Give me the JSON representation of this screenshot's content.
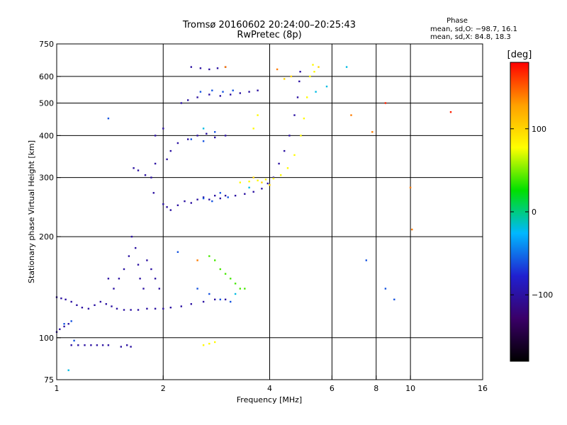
{
  "chart_data": {
    "type": "scatter",
    "title": "Tromsø 20160602 20:24:00–20:25:43",
    "subtitle": "RwPretec (8p)",
    "xlabel": "Frequency [MHz]",
    "ylabel": "Stationary phase Virtual Height [km]",
    "x_scale": "log",
    "y_scale": "log",
    "xlim": [
      1,
      16
    ],
    "ylim": [
      75,
      750
    ],
    "x_ticks": [
      1,
      2,
      4,
      6,
      8,
      10,
      16
    ],
    "y_ticks": [
      75,
      100,
      200,
      300,
      400,
      500,
      600,
      750
    ],
    "grid": true,
    "phase_info": {
      "heading": "Phase",
      "line_o": "mean, sd,O: −98.7, 16.1",
      "line_x": "mean, sd,X:  84.8, 18.3"
    },
    "colorbar": {
      "label": "[deg]",
      "range": [
        -180,
        180
      ],
      "ticks": [
        100,
        0,
        -100
      ],
      "colors": [
        "#000000",
        "#3a0068",
        "#2020d0",
        "#00b8ff",
        "#00e000",
        "#ffff00",
        "#ffa000",
        "#ff0000"
      ]
    },
    "series": [
      {
        "phase": -100,
        "points": [
          [
            1.0,
            132
          ],
          [
            1.03,
            131
          ],
          [
            1.06,
            130
          ],
          [
            1.1,
            128
          ],
          [
            1.14,
            125
          ],
          [
            1.18,
            123
          ],
          [
            1.23,
            122
          ],
          [
            1.28,
            125
          ],
          [
            1.33,
            128
          ],
          [
            1.38,
            126
          ],
          [
            1.43,
            124
          ],
          [
            1.48,
            122
          ],
          [
            1.55,
            121
          ],
          [
            1.62,
            121
          ],
          [
            1.7,
            121
          ],
          [
            1.8,
            122
          ],
          [
            1.9,
            122
          ],
          [
            2.0,
            122
          ],
          [
            2.1,
            123
          ],
          [
            2.25,
            124
          ],
          [
            2.4,
            126
          ],
          [
            2.6,
            128
          ],
          [
            2.8,
            130
          ],
          [
            3.0,
            130
          ],
          [
            1.0,
            104
          ],
          [
            1.02,
            106
          ],
          [
            1.05,
            108
          ],
          [
            1.08,
            110
          ],
          [
            1.1,
            95
          ],
          [
            1.15,
            95
          ],
          [
            1.2,
            95
          ],
          [
            1.25,
            95
          ],
          [
            1.3,
            95
          ],
          [
            1.35,
            95
          ],
          [
            1.4,
            95
          ],
          [
            1.52,
            94
          ],
          [
            1.58,
            95
          ],
          [
            1.62,
            94
          ],
          [
            1.5,
            150
          ],
          [
            1.55,
            160
          ],
          [
            1.6,
            175
          ],
          [
            1.63,
            200
          ],
          [
            1.67,
            185
          ],
          [
            1.7,
            165
          ],
          [
            1.72,
            150
          ],
          [
            1.76,
            140
          ],
          [
            1.8,
            170
          ],
          [
            1.85,
            160
          ],
          [
            1.9,
            150
          ],
          [
            1.95,
            140
          ],
          [
            1.45,
            140
          ],
          [
            1.4,
            150
          ],
          [
            1.65,
            320
          ],
          [
            1.7,
            315
          ],
          [
            1.78,
            305
          ],
          [
            1.85,
            300
          ],
          [
            1.88,
            270
          ],
          [
            1.9,
            330
          ],
          [
            2.0,
            250
          ],
          [
            2.05,
            245
          ],
          [
            2.1,
            240
          ],
          [
            2.2,
            248
          ],
          [
            2.3,
            255
          ],
          [
            2.4,
            252
          ],
          [
            2.5,
            258
          ],
          [
            2.6,
            262
          ],
          [
            2.7,
            258
          ],
          [
            2.8,
            265
          ],
          [
            2.9,
            260
          ],
          [
            3.0,
            265
          ],
          [
            3.2,
            265
          ],
          [
            3.4,
            268
          ],
          [
            3.6,
            272
          ],
          [
            3.8,
            278
          ],
          [
            3.95,
            288
          ],
          [
            4.1,
            300
          ],
          [
            4.25,
            330
          ],
          [
            4.4,
            360
          ],
          [
            4.55,
            400
          ],
          [
            4.7,
            460
          ],
          [
            4.8,
            520
          ],
          [
            4.85,
            580
          ],
          [
            4.88,
            620
          ],
          [
            2.25,
            500
          ],
          [
            2.35,
            510
          ],
          [
            2.5,
            520
          ],
          [
            2.7,
            530
          ],
          [
            2.9,
            525
          ],
          [
            3.1,
            530
          ],
          [
            3.3,
            535
          ],
          [
            3.5,
            540
          ],
          [
            3.7,
            545
          ],
          [
            2.4,
            640
          ],
          [
            2.55,
            635
          ],
          [
            2.7,
            630
          ],
          [
            2.85,
            635
          ],
          [
            3.0,
            640
          ],
          [
            2.2,
            380
          ],
          [
            2.35,
            390
          ],
          [
            2.5,
            400
          ],
          [
            2.65,
            405
          ],
          [
            2.8,
            395
          ],
          [
            3.0,
            400
          ],
          [
            2.05,
            340
          ],
          [
            2.1,
            360
          ],
          [
            1.9,
            400
          ],
          [
            2.0,
            420
          ]
        ]
      },
      {
        "phase": -60,
        "points": [
          [
            2.5,
            140
          ],
          [
            2.7,
            135
          ],
          [
            2.9,
            130
          ],
          [
            3.1,
            128
          ],
          [
            2.6,
            260
          ],
          [
            2.75,
            255
          ],
          [
            2.9,
            270
          ],
          [
            3.05,
            262
          ],
          [
            2.55,
            540
          ],
          [
            2.75,
            545
          ],
          [
            2.95,
            540
          ],
          [
            3.15,
            545
          ],
          [
            2.4,
            390
          ],
          [
            2.6,
            385
          ],
          [
            2.8,
            410
          ],
          [
            1.05,
            110
          ],
          [
            1.1,
            112
          ],
          [
            1.12,
            98
          ],
          [
            1.4,
            450
          ],
          [
            2.2,
            180
          ],
          [
            7.5,
            170
          ],
          [
            8.5,
            140
          ],
          [
            9.0,
            130
          ]
        ]
      },
      {
        "phase": -20,
        "points": [
          [
            1.08,
            80
          ],
          [
            2.6,
            420
          ],
          [
            3.2,
            135
          ],
          [
            3.5,
            280
          ],
          [
            5.4,
            540
          ],
          [
            5.8,
            560
          ],
          [
            6.6,
            640
          ]
        ]
      },
      {
        "phase": 40,
        "points": [
          [
            2.7,
            175
          ],
          [
            2.8,
            170
          ],
          [
            2.9,
            160
          ],
          [
            3.0,
            155
          ],
          [
            3.1,
            150
          ],
          [
            3.2,
            145
          ],
          [
            3.3,
            140
          ],
          [
            3.4,
            140
          ]
        ]
      },
      {
        "phase": 80,
        "points": [
          [
            3.3,
            290
          ],
          [
            3.5,
            292
          ],
          [
            3.7,
            294
          ],
          [
            3.9,
            296
          ],
          [
            4.1,
            298
          ],
          [
            4.3,
            305
          ],
          [
            4.5,
            320
          ],
          [
            4.7,
            350
          ],
          [
            4.9,
            400
          ],
          [
            5.0,
            450
          ],
          [
            5.1,
            520
          ],
          [
            5.2,
            600
          ],
          [
            5.3,
            650
          ],
          [
            5.35,
            620
          ],
          [
            2.6,
            95
          ],
          [
            2.7,
            96
          ],
          [
            2.8,
            97
          ],
          [
            3.6,
            420
          ],
          [
            3.7,
            460
          ]
        ]
      },
      {
        "phase": 100,
        "points": [
          [
            4.4,
            590
          ],
          [
            4.6,
            600
          ],
          [
            5.5,
            640
          ],
          [
            3.6,
            300
          ],
          [
            3.8,
            290
          ],
          [
            4.0,
            285
          ]
        ]
      },
      {
        "phase": 140,
        "points": [
          [
            2.5,
            170
          ],
          [
            3.0,
            640
          ],
          [
            4.2,
            630
          ],
          [
            6.8,
            460
          ],
          [
            7.8,
            410
          ],
          [
            10.0,
            280
          ],
          [
            10.1,
            210
          ]
        ]
      },
      {
        "phase": 170,
        "points": [
          [
            13.0,
            470
          ],
          [
            8.5,
            500
          ]
        ]
      }
    ]
  }
}
